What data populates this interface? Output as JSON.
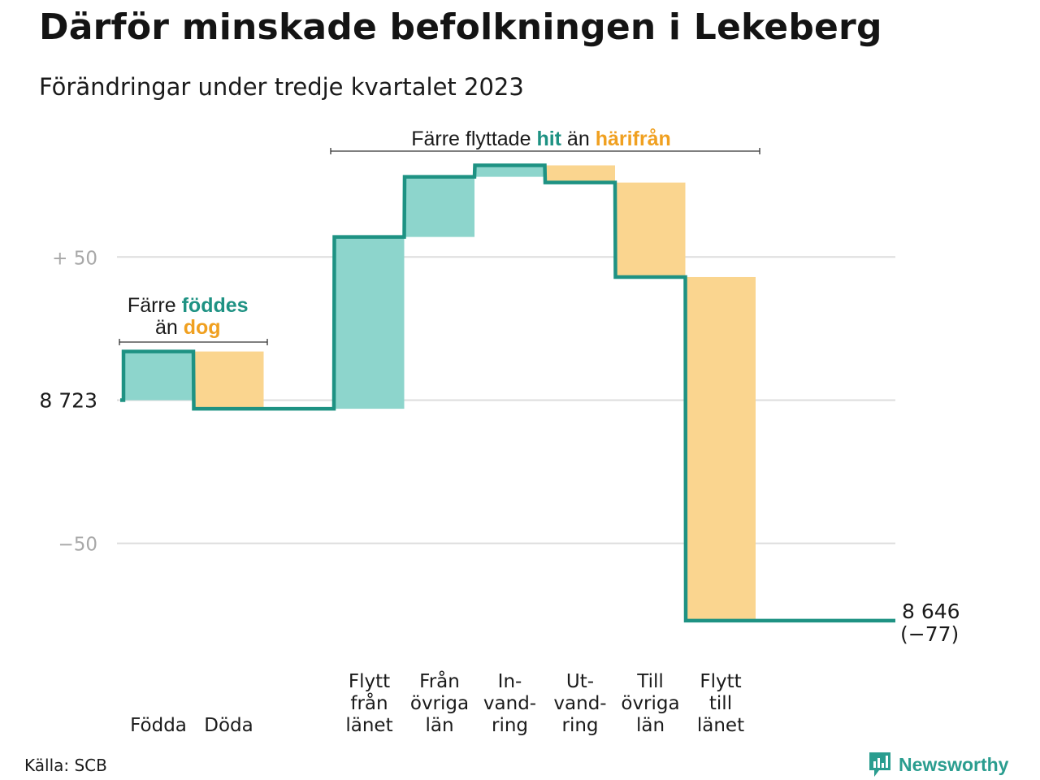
{
  "title": "Därför minskade befolkningen i Lekeberg",
  "subtitle": "Förändringar under tredje kvartalet 2023",
  "source": "Källa: SCB",
  "logo": {
    "text": "Newsworthy",
    "icon": "bar-chart-speech-bubble-icon",
    "color": "#2a9d8f"
  },
  "colors": {
    "increase": "#8dd5cc",
    "decrease": "#fad58f",
    "line": "#1e9283",
    "teal_text": "#1e9283",
    "orange_text": "#f0a020",
    "grid": "#dddddd"
  },
  "chart_data": {
    "type": "waterfall",
    "start_value": 8723,
    "start_label": "8  723",
    "end_value": 8646,
    "end_label": "8 646",
    "end_change_label": "(−77)",
    "y_ticks": [
      {
        "value": 50,
        "label": "+  50"
      },
      {
        "value": 0,
        "label": "8  723"
      },
      {
        "value": -50,
        "label": "−50"
      }
    ],
    "ylim": [
      -81,
      83
    ],
    "categories": [
      {
        "lines": [
          "Födda"
        ],
        "change": 17,
        "kind": "increase"
      },
      {
        "lines": [
          "Döda"
        ],
        "change": -20,
        "kind": "decrease"
      },
      {
        "lines": [
          ""
        ],
        "change": 0,
        "kind": "none"
      },
      {
        "lines": [
          "Flytt",
          "från",
          "länet"
        ],
        "change": 60,
        "kind": "increase"
      },
      {
        "lines": [
          "Från",
          "övriga",
          "län"
        ],
        "change": 21,
        "kind": "increase"
      },
      {
        "lines": [
          "In-",
          "vand-",
          "ring"
        ],
        "change": 4,
        "kind": "increase"
      },
      {
        "lines": [
          "Ut-",
          "vand-",
          "ring"
        ],
        "change": -6,
        "kind": "decrease"
      },
      {
        "lines": [
          "Till",
          "övriga",
          "län"
        ],
        "change": -33,
        "kind": "decrease"
      },
      {
        "lines": [
          "Flytt",
          "till",
          "länet"
        ],
        "change": -120,
        "kind": "decrease"
      }
    ],
    "annotations": [
      {
        "parts": [
          {
            "text": "Färre ",
            "color": "dark"
          },
          {
            "text": "föddes",
            "color": "teal"
          }
        ],
        "parts2": [
          {
            "text": "än ",
            "color": "dark"
          },
          {
            "text": "dog",
            "color": "orange"
          }
        ],
        "span": [
          0,
          1
        ]
      },
      {
        "parts": [
          {
            "text": "Färre flyttade ",
            "color": "dark"
          },
          {
            "text": "hit",
            "color": "teal"
          },
          {
            "text": " än ",
            "color": "dark"
          },
          {
            "text": "härifrån",
            "color": "orange"
          }
        ],
        "span": [
          3,
          8
        ]
      }
    ]
  }
}
